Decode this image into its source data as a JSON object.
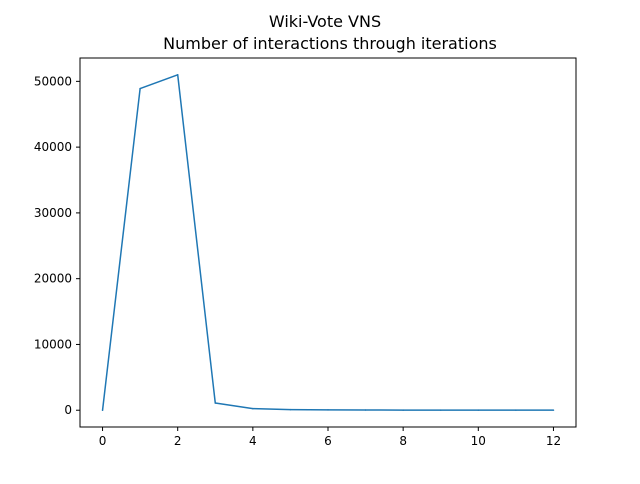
{
  "chart_data": {
    "type": "line",
    "title_line1": "Wiki-Vote VNS",
    "title_line2": "Number of interactions through iterations",
    "xlabel": "",
    "ylabel": "",
    "xlim": [
      -0.6,
      12.6
    ],
    "ylim": [
      -2550,
      53550
    ],
    "xticks": [
      0,
      2,
      4,
      6,
      8,
      10,
      12
    ],
    "yticks": [
      0,
      10000,
      20000,
      30000,
      40000,
      50000
    ],
    "grid": false,
    "series": [
      {
        "color": "#1f77b4",
        "x": [
          0,
          1,
          2,
          3,
          4,
          5,
          6,
          7,
          8,
          9,
          10,
          11,
          12
        ],
        "y": [
          0,
          48900,
          51000,
          1100,
          250,
          100,
          60,
          40,
          20,
          10,
          10,
          10,
          10
        ]
      }
    ]
  }
}
